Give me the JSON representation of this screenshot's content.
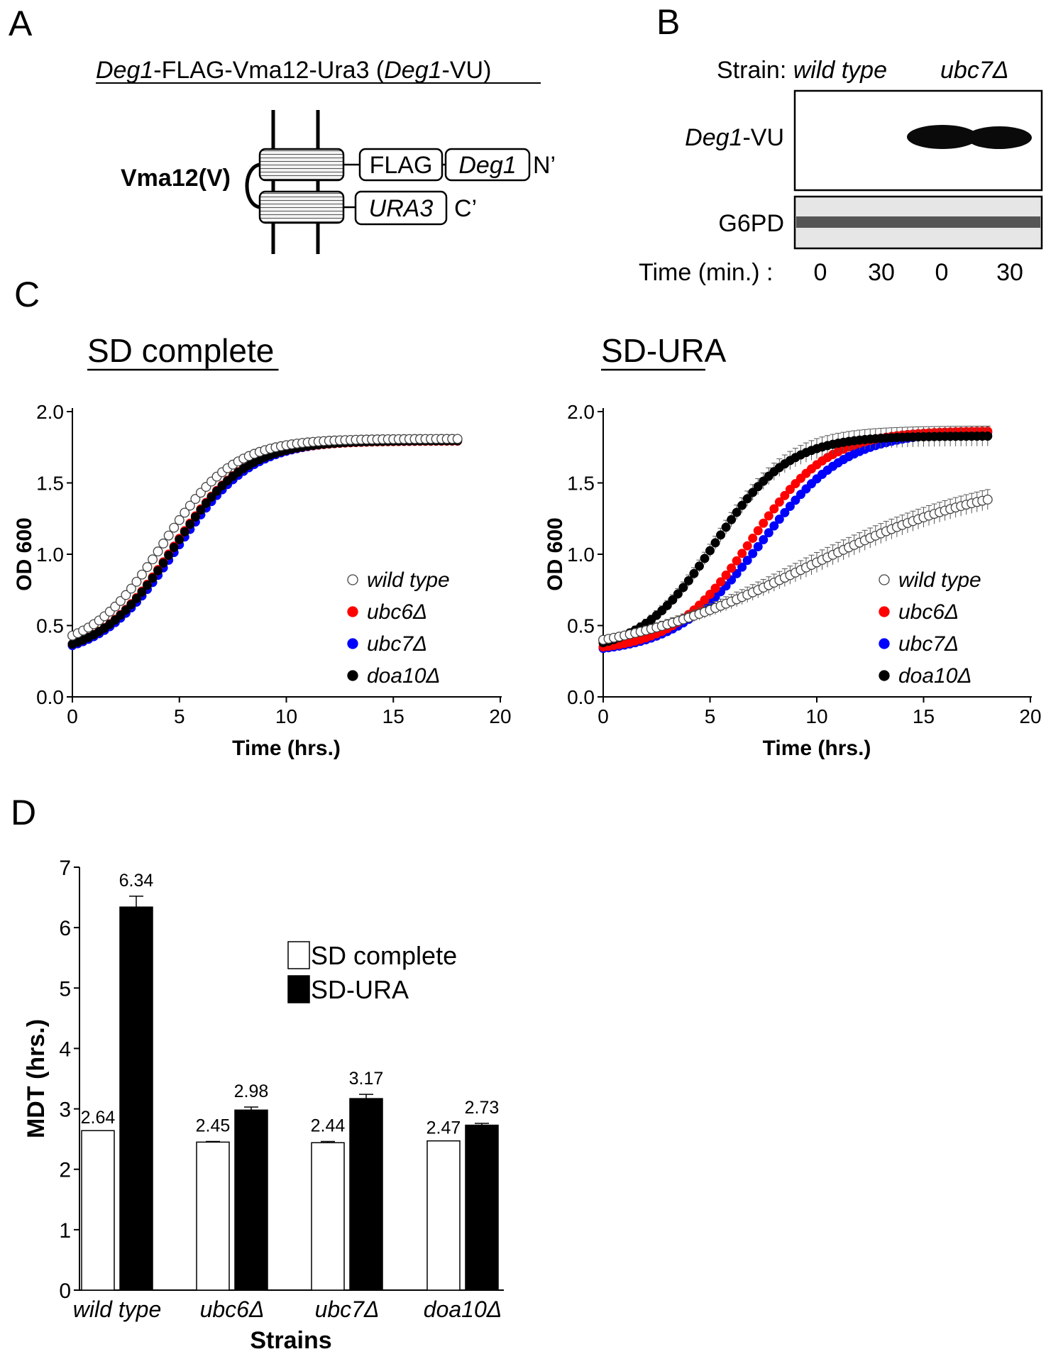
{
  "panels": {
    "a": {
      "label": "A",
      "title_italic_1": "Deg1",
      "title_mid": "-FLAG-Vma12-Ura3 (",
      "title_italic_2": "Deg1",
      "title_end": "-VU)",
      "vma_label": "Vma12(V)",
      "flag_box": "FLAG",
      "deg1_box": "Deg1",
      "nterm": "N’",
      "ura3_box": "URA3",
      "cterm": "C’"
    },
    "b": {
      "label": "B",
      "strain_prefix": "Strain:",
      "strain_wt": "wild type",
      "strain_ubc7": "ubc7Δ",
      "row1_italic": "Deg1",
      "row1_rest": "-VU",
      "row2": "G6PD",
      "time_label": "Time (min.) :",
      "time_values": [
        "0",
        "30",
        "0",
        "30"
      ]
    },
    "c": {
      "label": "C"
    },
    "d": {
      "label": "D"
    }
  },
  "colors": {
    "wild_type_fill": "#ffffff",
    "ubc6": "#ff0000",
    "ubc7": "#0000ff",
    "doa10": "#000000",
    "bar_sd_complete": "#ffffff",
    "bar_sd_ura": "#000000"
  },
  "chart_data": [
    {
      "type": "scatter",
      "title": "SD complete",
      "xlabel": "Time (hrs.)",
      "ylabel": "OD 600",
      "xlim": [
        0,
        20
      ],
      "ylim": [
        0,
        2
      ],
      "xticks": [
        "0",
        "5",
        "10",
        "15",
        "20"
      ],
      "yticks": [
        "0.0",
        "0.5",
        "1.0",
        "1.5",
        "2.0"
      ],
      "x": [
        0,
        2,
        4,
        6,
        8,
        10,
        12,
        14,
        16,
        18
      ],
      "series": [
        {
          "name": "wild type",
          "curve": {
            "y0": 0.43,
            "ymax": 1.92,
            "mid": 4.2,
            "slope": 0.6
          }
        },
        {
          "name": "ubc6Δ",
          "curve": {
            "y0": 0.37,
            "ymax": 1.89,
            "mid": 4.65,
            "slope": 0.58
          }
        },
        {
          "name": "ubc7Δ",
          "curve": {
            "y0": 0.36,
            "ymax": 1.89,
            "mid": 4.85,
            "slope": 0.57
          }
        },
        {
          "name": "doa10Δ",
          "curve": {
            "y0": 0.37,
            "ymax": 1.89,
            "mid": 4.7,
            "slope": 0.58
          }
        }
      ],
      "legend": "bottom-right"
    },
    {
      "type": "scatter",
      "title": "SD-URA",
      "xlabel": "Time (hrs.)",
      "ylabel": "OD 600",
      "xlim": [
        0,
        20
      ],
      "ylim": [
        0,
        2
      ],
      "xticks": [
        "0",
        "5",
        "10",
        "15",
        "20"
      ],
      "yticks": [
        "0.0",
        "0.5",
        "1.0",
        "1.5",
        "2.0"
      ],
      "series": [
        {
          "name": "wild type",
          "curve": {
            "y0": 0.4,
            "ymax": 1.7,
            "mid": 9.5,
            "slope": 0.22
          },
          "error_bars": true
        },
        {
          "name": "ubc6Δ",
          "curve": {
            "y0": 0.35,
            "ymax": 1.9,
            "mid": 6.9,
            "slope": 0.55
          }
        },
        {
          "name": "ubc7Δ",
          "curve": {
            "y0": 0.34,
            "ymax": 1.9,
            "mid": 7.4,
            "slope": 0.5
          }
        },
        {
          "name": "doa10Δ",
          "curve": {
            "y0": 0.38,
            "ymax": 1.9,
            "mid": 5.2,
            "slope": 0.58
          },
          "error_bars": true
        }
      ],
      "legend": "bottom-right"
    },
    {
      "type": "bar",
      "title": "",
      "xlabel": "Strains",
      "ylabel": "MDT (hrs.)",
      "ylim": [
        0,
        7
      ],
      "yticks": [
        "0",
        "1",
        "2",
        "3",
        "4",
        "5",
        "6",
        "7"
      ],
      "categories": [
        "wild type",
        "ubc6Δ",
        "ubc7Δ",
        "doa10Δ"
      ],
      "series": [
        {
          "name": "SD complete",
          "values": [
            2.64,
            2.45,
            2.44,
            2.47
          ],
          "labels": [
            "2.64",
            "2.45",
            "2.44",
            "2.47"
          ],
          "errors": [
            0,
            0.01,
            0.02,
            0
          ]
        },
        {
          "name": "SD-URA",
          "values": [
            6.34,
            2.98,
            3.17,
            2.73
          ],
          "labels": [
            "6.34",
            "2.98",
            "3.17",
            "2.73"
          ],
          "errors": [
            0.18,
            0.05,
            0.07,
            0.03
          ]
        }
      ],
      "legend": "top-right"
    }
  ]
}
